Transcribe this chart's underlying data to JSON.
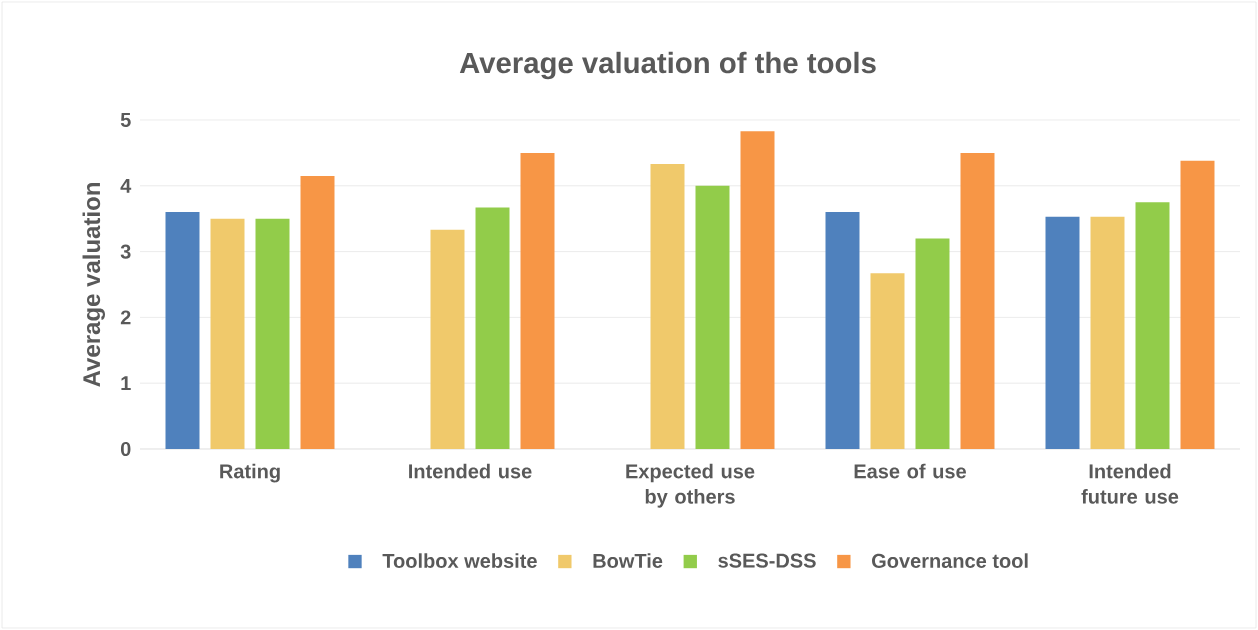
{
  "chart_data": {
    "type": "bar",
    "title": "Average valuation of the tools",
    "ylabel": "Average valuation",
    "categories": [
      "Rating",
      "Intended use",
      "Expected use by others",
      "Ease of use",
      "Intended future use"
    ],
    "series": [
      {
        "name": "Toolbox website",
        "color": "#4f81bd",
        "values": [
          3.6,
          null,
          null,
          3.6,
          3.53
        ]
      },
      {
        "name": "BowTie",
        "color": "#f0c96b",
        "values": [
          3.5,
          3.33,
          4.33,
          2.67,
          3.53
        ]
      },
      {
        "name": "sSES-DSS",
        "color": "#92cc4a",
        "values": [
          3.5,
          3.67,
          4.0,
          3.2,
          3.75
        ]
      },
      {
        "name": "Governance tool",
        "color": "#f79646",
        "values": [
          4.15,
          4.5,
          4.83,
          4.5,
          4.38
        ]
      }
    ],
    "ylim": [
      0,
      5
    ],
    "yticks": [
      0,
      1,
      2,
      3,
      4,
      5
    ],
    "grid": "y",
    "legend": "bottom"
  }
}
